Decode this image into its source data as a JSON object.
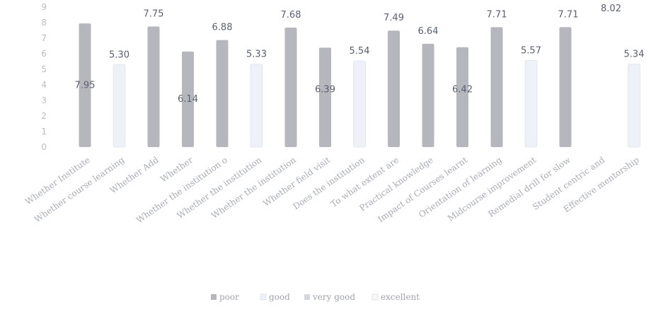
{
  "chart_data": {
    "type": "bar",
    "categories": [
      "Whether Institute",
      "Whether course learning",
      "Whether Add",
      "Whether",
      "Whether the institution o",
      "Whether the institution",
      "Whether the institution",
      "Whether field visit",
      "Does the institution",
      "To what extent are",
      "Practical knowledge",
      "Impact of Courses learnt",
      "Orientation of learning",
      "Midcourse improvement",
      "Remedial drill for slow",
      "Student centric and",
      "Effective mentorship"
    ],
    "series": [
      {
        "name": "poor",
        "color": "#b5b7bc",
        "bars": [
          {
            "category": "Whether Institute",
            "value": 7.95,
            "label": "7.95"
          },
          {
            "category": "Whether Add",
            "value": 7.75,
            "label": "7.75"
          },
          {
            "category": "Whether",
            "value": 6.14,
            "label": "6.14"
          },
          {
            "category": "Whether the institution o",
            "value": 6.88,
            "label": "6.88"
          },
          {
            "category": "Whether the institution",
            "value": 7.68,
            "label": "7.68",
            "index": 6
          },
          {
            "category": "Whether field visit",
            "value": 6.39,
            "label": "6.39"
          },
          {
            "category": "To what extent are",
            "value": 7.49,
            "label": "7.49"
          },
          {
            "category": "Practical knowledge",
            "value": 6.64,
            "label": "6.64"
          },
          {
            "category": "Impact of Courses learnt",
            "value": 6.42,
            "label": "6.42"
          },
          {
            "category": "Orientation of learning",
            "value": 7.71,
            "label": "7.71"
          },
          {
            "category": "Remedial drill for slow",
            "value": 7.71,
            "label": "7.71"
          }
        ]
      },
      {
        "name": "good",
        "color": "#eef2f8",
        "bars": [
          {
            "category": "Whether course learning",
            "value": 5.3,
            "label": "5.30"
          },
          {
            "category": "Whether the institution",
            "value": 5.33,
            "label": "5.33",
            "index": 5
          },
          {
            "category": "Does the institution",
            "value": 5.54,
            "label": "5.54"
          },
          {
            "category": "Midcourse improvement",
            "value": 5.57,
            "label": "5.57"
          },
          {
            "category": "Effective mentorship",
            "value": 5.34,
            "label": "5.34"
          }
        ]
      },
      {
        "name": "very good",
        "color": "#d3d6dc",
        "bars": []
      },
      {
        "name": "excellent",
        "color": "#f7f8fa",
        "bars": [
          {
            "category": "Student centric and",
            "value": 8.02,
            "label": "8.02"
          }
        ]
      }
    ],
    "ylim": [
      0,
      9
    ],
    "yticks": [
      "0",
      "1",
      "2",
      "3",
      "4",
      "5",
      "6",
      "7",
      "8",
      "9"
    ],
    "grid": false,
    "legend_position": "bottom",
    "title": "",
    "xlabel": "",
    "ylabel": ""
  }
}
